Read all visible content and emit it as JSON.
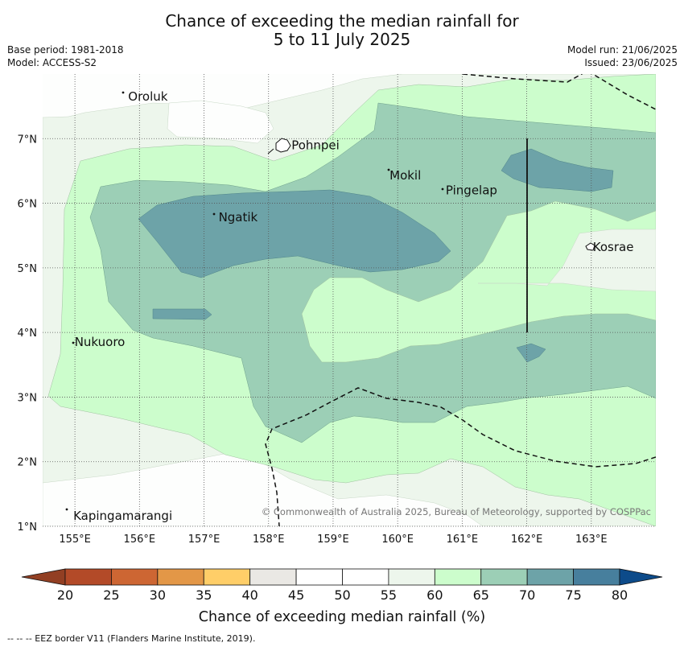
{
  "header": {
    "title_line1": "Chance of exceeding the median rainfall for",
    "title_line2": "5 to 11 July 2025",
    "base_period": "Base period: 1981-2018",
    "model": "Model: ACCESS-S2",
    "model_run": "Model run: 21/06/2025",
    "issued": "Issued: 23/06/2025"
  },
  "map": {
    "lat_ticks": [
      "1°N",
      "2°N",
      "3°N",
      "4°N",
      "5°N",
      "6°N",
      "7°N"
    ],
    "lon_ticks": [
      "155°E",
      "156°E",
      "157°E",
      "158°E",
      "159°E",
      "160°E",
      "161°E",
      "162°E",
      "163°E"
    ],
    "places": [
      {
        "name": "Oroluk",
        "lon": 155.8,
        "lat": 7.65
      },
      {
        "name": "Pohnpei",
        "lon": 158.33,
        "lat": 6.9
      },
      {
        "name": "Mokil",
        "lon": 159.85,
        "lat": 6.43
      },
      {
        "name": "Pingelap",
        "lon": 160.72,
        "lat": 6.2
      },
      {
        "name": "Ngatik",
        "lon": 157.2,
        "lat": 5.78
      },
      {
        "name": "Kosrae",
        "lon": 163.0,
        "lat": 5.32
      },
      {
        "name": "Nukuoro",
        "lon": 154.97,
        "lat": 3.85
      },
      {
        "name": "Kapingamarangi",
        "lon": 154.95,
        "lat": 1.16
      }
    ],
    "copyright": "© Commonwealth of Australia 2025, Bureau of Meteorology, supported by COSPPac"
  },
  "colorbar": {
    "ticks": [
      "20",
      "25",
      "30",
      "35",
      "40",
      "45",
      "50",
      "55",
      "60",
      "65",
      "70",
      "75",
      "80"
    ],
    "colors": [
      "#b34a28",
      "#cd6633",
      "#e39747",
      "#ffce68",
      "#eae8e4",
      "#ffffff",
      "#ffffff",
      "#edf6ec",
      "#ccfdcc",
      "#9ccfb6",
      "#6da3a8",
      "#477f9d"
    ],
    "under_color": "#923f23",
    "over_color": "#0d4b8a",
    "label": "Chance of exceeding median rainfall (%)"
  },
  "footer": {
    "eez_note": "--  --  -- EEZ border V11 (Flanders Marine Institute, 2019)."
  }
}
